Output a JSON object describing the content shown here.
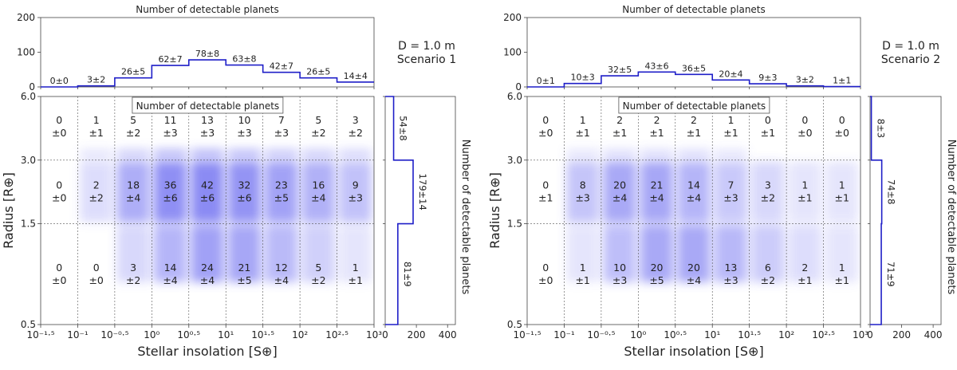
{
  "chart_data": [
    {
      "panel": "Scenario 1",
      "type": "heatmap",
      "annotation": {
        "line1": "D = 1.0 m",
        "line2": "Scenario 1"
      },
      "top_histogram": {
        "title": "Number of detectable planets",
        "ylim": [
          0,
          200
        ],
        "yticks": [
          "0",
          "100",
          "200"
        ],
        "values": [
          0,
          3,
          26,
          62,
          78,
          63,
          42,
          26,
          14
        ],
        "labels": [
          "0±0",
          "3±2",
          "26±5",
          "62±7",
          "78±8",
          "63±8",
          "42±7",
          "26±5",
          "14±4"
        ]
      },
      "main": {
        "box_label": "Number of detectable planets",
        "xlabel": "Stellar insolation [S⊕]",
        "ylabel": "Radius [R⊕]",
        "xticks": [
          "10⁻¹·⁵",
          "10⁻¹",
          "10⁻⁰·⁵",
          "10⁰",
          "10⁰·⁵",
          "10¹",
          "10¹·⁵",
          "10²",
          "10²·⁵",
          "10³"
        ],
        "yticks": [
          "6.0",
          "3.0",
          "1.5",
          "0.5"
        ],
        "row_ranges": [
          [
            3.0,
            6.0
          ],
          [
            1.5,
            3.0
          ],
          [
            0.5,
            1.5
          ]
        ],
        "counts": [
          [
            0,
            1,
            5,
            11,
            13,
            10,
            7,
            5,
            3
          ],
          [
            0,
            2,
            18,
            36,
            42,
            32,
            23,
            16,
            9
          ],
          [
            0,
            0,
            3,
            14,
            24,
            21,
            12,
            5,
            1
          ]
        ],
        "errors": [
          [
            0,
            1,
            2,
            3,
            3,
            3,
            3,
            2,
            2
          ],
          [
            0,
            2,
            4,
            6,
            6,
            6,
            5,
            4,
            3
          ],
          [
            0,
            0,
            2,
            4,
            4,
            5,
            4,
            2,
            1
          ]
        ],
        "cell_values": [
          [
            "0",
            "1",
            "5",
            "11",
            "13",
            "10",
            "7",
            "5",
            "3"
          ],
          [
            "0",
            "2",
            "18",
            "36",
            "42",
            "32",
            "23",
            "16",
            "9"
          ],
          [
            "0",
            "0",
            "3",
            "14",
            "24",
            "21",
            "12",
            "5",
            "1"
          ]
        ],
        "cell_errors": [
          [
            "±0",
            "±1",
            "±2",
            "±3",
            "±3",
            "±3",
            "±3",
            "±2",
            "±2"
          ],
          [
            "±0",
            "±2",
            "±4",
            "±6",
            "±6",
            "±6",
            "±5",
            "±4",
            "±3"
          ],
          [
            "±0",
            "±0",
            "±2",
            "±4",
            "±4",
            "±5",
            "±4",
            "±2",
            "±1"
          ]
        ]
      },
      "right_histogram": {
        "ylabel": "Number of detectable planets",
        "xlim": [
          0,
          450
        ],
        "xticks": [
          "0",
          "200",
          "400"
        ],
        "values": [
          54,
          179,
          81
        ],
        "labels": [
          "54±8",
          "179±14",
          "81±9"
        ]
      }
    },
    {
      "panel": "Scenario 2",
      "type": "heatmap",
      "annotation": {
        "line1": "D = 1.0 m",
        "line2": "Scenario 2"
      },
      "top_histogram": {
        "title": "Number of detectable planets",
        "ylim": [
          0,
          200
        ],
        "yticks": [
          "0",
          "100",
          "200"
        ],
        "values": [
          0,
          10,
          32,
          43,
          36,
          20,
          9,
          3,
          1
        ],
        "labels": [
          "0±1",
          "10±3",
          "32±5",
          "43±6",
          "36±5",
          "20±4",
          "9±3",
          "3±2",
          "1±1"
        ]
      },
      "main": {
        "box_label": "Number of detectable planets",
        "xlabel": "Stellar insolation [S⊕]",
        "ylabel": "Radius [R⊕]",
        "xticks": [
          "10⁻¹·⁵",
          "10⁻¹",
          "10⁻⁰·⁵",
          "10⁰",
          "10⁰·⁵",
          "10¹",
          "10¹·⁵",
          "10²",
          "10²·⁵",
          "10³"
        ],
        "yticks": [
          "6.0",
          "3.0",
          "1.5",
          "0.5"
        ],
        "row_ranges": [
          [
            3.0,
            6.0
          ],
          [
            1.5,
            3.0
          ],
          [
            0.5,
            1.5
          ]
        ],
        "counts": [
          [
            0,
            1,
            2,
            2,
            2,
            1,
            0,
            0,
            0
          ],
          [
            0,
            8,
            20,
            21,
            14,
            7,
            3,
            1,
            1
          ],
          [
            0,
            1,
            10,
            20,
            20,
            13,
            6,
            2,
            1
          ]
        ],
        "errors": [
          [
            0,
            1,
            1,
            1,
            1,
            1,
            1,
            0,
            0
          ],
          [
            1,
            3,
            4,
            4,
            4,
            3,
            2,
            1,
            1
          ],
          [
            0,
            1,
            3,
            5,
            4,
            3,
            2,
            1,
            1
          ]
        ],
        "cell_values": [
          [
            "0",
            "1",
            "2",
            "2",
            "2",
            "1",
            "0",
            "0",
            "0"
          ],
          [
            "0",
            "8",
            "20",
            "21",
            "14",
            "7",
            "3",
            "1",
            "1"
          ],
          [
            "0",
            "1",
            "10",
            "20",
            "20",
            "13",
            "6",
            "2",
            "1"
          ]
        ],
        "cell_errors": [
          [
            "±0",
            "±1",
            "±1",
            "±1",
            "±1",
            "±1",
            "±1",
            "±0",
            "±0"
          ],
          [
            "±1",
            "±3",
            "±4",
            "±4",
            "±4",
            "±3",
            "±2",
            "±1",
            "±1"
          ],
          [
            "±0",
            "±1",
            "±3",
            "±5",
            "±4",
            "±3",
            "±2",
            "±1",
            "±1"
          ]
        ]
      },
      "right_histogram": {
        "ylabel": "Number of detectable planets",
        "xlim": [
          0,
          450
        ],
        "xticks": [
          "0",
          "200",
          "400"
        ],
        "values": [
          8,
          74,
          71
        ],
        "labels": [
          "8±3",
          "74±8",
          "71±9"
        ]
      }
    }
  ]
}
